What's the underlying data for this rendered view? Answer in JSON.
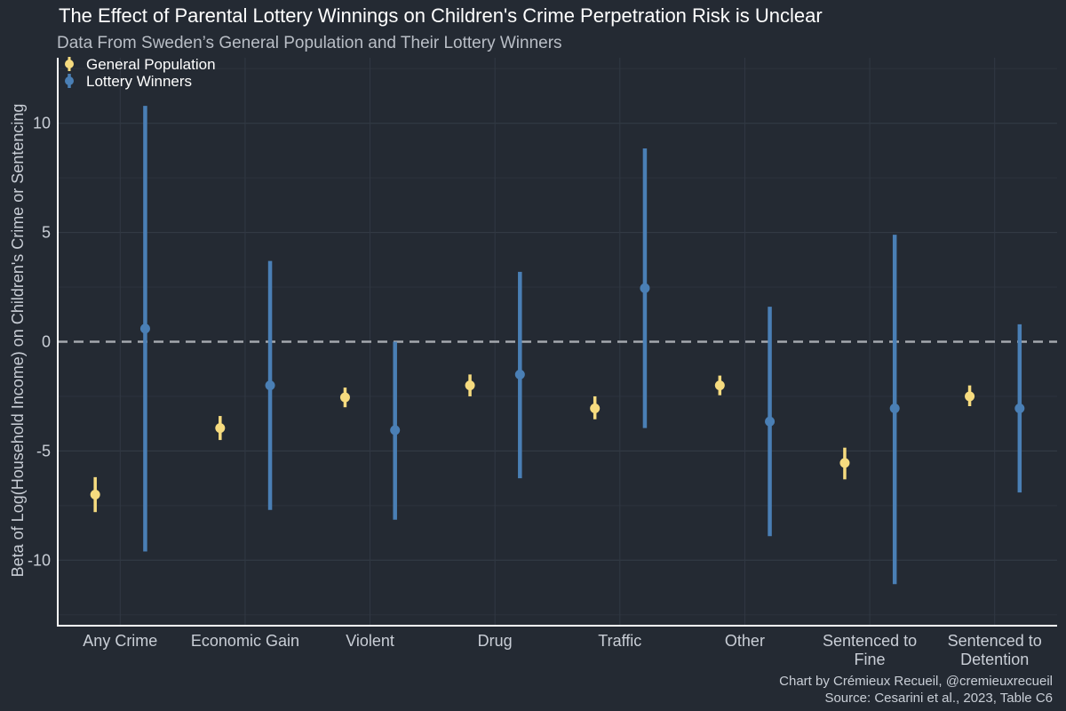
{
  "chart_data": {
    "type": "errorbar",
    "title": "The Effect of Parental Lottery Winnings on Children's Crime Perpetration Risk is Unclear",
    "subtitle": "Data From Sweden’s General Population and Their Lottery Winners",
    "xlabel": "",
    "ylabel": "Beta of Log(Household Income) on Children's Crime or Sentencing",
    "ylim": [
      -13,
      13
    ],
    "yticks": [
      -10,
      -5,
      0,
      5,
      10
    ],
    "ytick_labels": [
      "-10",
      "-5",
      "0",
      "5",
      "10"
    ],
    "reference_line": 0,
    "grid": true,
    "legend_position": "top-left",
    "categories": [
      [
        "Any Crime"
      ],
      [
        "Economic Gain"
      ],
      [
        "Violent"
      ],
      [
        "Drug"
      ],
      [
        "Traffic"
      ],
      [
        "Other"
      ],
      [
        "Sentenced to",
        "Fine"
      ],
      [
        "Sentenced to",
        "Detention"
      ]
    ],
    "series": [
      {
        "name": "General Population",
        "color": "#f6db7f",
        "points": [
          {
            "y": -7.0,
            "low": -7.8,
            "high": -6.2
          },
          {
            "y": -3.95,
            "low": -4.5,
            "high": -3.4
          },
          {
            "y": -2.55,
            "low": -3.0,
            "high": -2.1
          },
          {
            "y": -2.0,
            "low": -2.5,
            "high": -1.5
          },
          {
            "y": -3.05,
            "low": -3.55,
            "high": -2.5
          },
          {
            "y": -2.0,
            "low": -2.45,
            "high": -1.55
          },
          {
            "y": -5.55,
            "low": -6.3,
            "high": -4.85
          },
          {
            "y": -2.5,
            "low": -2.95,
            "high": -2.0
          }
        ]
      },
      {
        "name": "Lottery Winners",
        "color": "#4a7fb5",
        "points": [
          {
            "y": 0.6,
            "low": -9.6,
            "high": 10.8
          },
          {
            "y": -2.0,
            "low": -7.7,
            "high": 3.7
          },
          {
            "y": -4.05,
            "low": -8.15,
            "high": 0.0
          },
          {
            "y": -1.5,
            "low": -6.25,
            "high": 3.2
          },
          {
            "y": 2.45,
            "low": -3.95,
            "high": 8.85
          },
          {
            "y": -3.65,
            "low": -8.9,
            "high": 1.6
          },
          {
            "y": -3.05,
            "low": -11.1,
            "high": 4.9
          },
          {
            "y": -3.05,
            "low": -6.9,
            "high": 0.8
          }
        ]
      }
    ],
    "caption": [
      "Chart by Crémieux Recueil, @cremieuxrecueil",
      "Source: Cesarini et al., 2023, Table C6"
    ]
  }
}
